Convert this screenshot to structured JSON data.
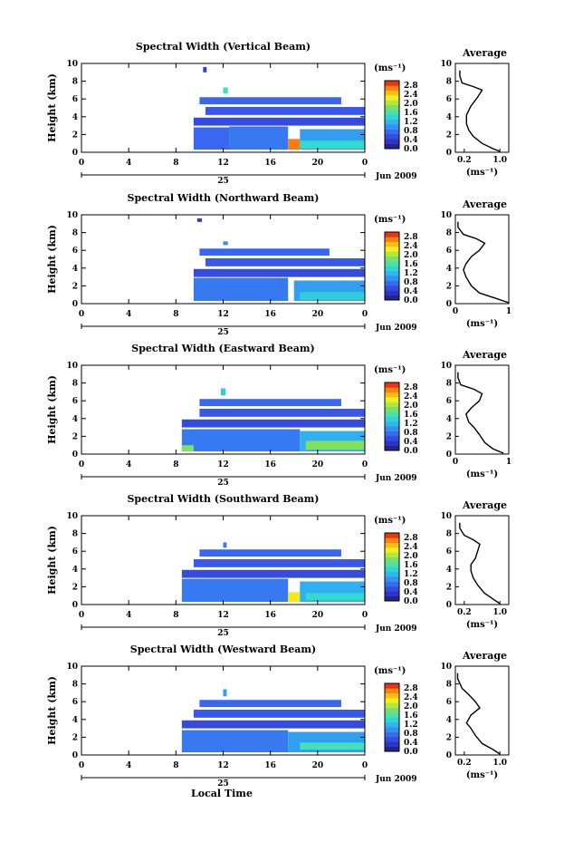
{
  "chart_data": [
    {
      "type": "heatmap",
      "title": "Spectral Width (Vertical Beam)",
      "ylabel": "Height (km)",
      "xlim": [
        0,
        24
      ],
      "ylim": [
        0,
        10
      ],
      "x_ticks": [
        "0",
        "4",
        "8",
        "12",
        "16",
        "20",
        "0"
      ],
      "y_ticks": [
        "0",
        "2",
        "4",
        "6",
        "8",
        "10"
      ],
      "date_day": "25",
      "date_month": "Jun 2009",
      "colorbar": {
        "unit": "(ms⁻¹)",
        "ticks": [
          "0.0",
          "0.4",
          "0.8",
          "1.2",
          "1.6",
          "2.0",
          "2.4",
          "2.8"
        ]
      },
      "cells": [
        {
          "t0": 9.5,
          "t1": 12.5,
          "h0": 0.3,
          "h1": 2.8,
          "v": 0.7
        },
        {
          "t0": 12.5,
          "t1": 17.5,
          "h0": 0.3,
          "h1": 2.9,
          "v": 0.8
        },
        {
          "t0": 17.5,
          "t1": 18.5,
          "h0": 0.3,
          "h1": 1.5,
          "v": 2.6
        },
        {
          "t0": 18.5,
          "t1": 24,
          "h0": 0.3,
          "h1": 2.6,
          "v": 1.0
        },
        {
          "t0": 18.5,
          "t1": 24,
          "h0": 0.4,
          "h1": 1.3,
          "v": 1.4
        },
        {
          "t0": 9.5,
          "t1": 24,
          "h0": 3.0,
          "h1": 3.9,
          "v": 0.5
        },
        {
          "t0": 10.5,
          "t1": 24,
          "h0": 4.2,
          "h1": 5.1,
          "v": 0.6
        },
        {
          "t0": 10.0,
          "t1": 22.0,
          "h0": 5.4,
          "h1": 6.2,
          "v": 0.7
        },
        {
          "t0": 12.0,
          "t1": 12.4,
          "h0": 6.6,
          "h1": 7.3,
          "v": 1.5
        },
        {
          "t0": 10.3,
          "t1": 10.6,
          "h0": 9.0,
          "h1": 9.6,
          "v": 0.4
        }
      ]
    },
    {
      "type": "line",
      "title": "Average",
      "xlabel": "(ms⁻¹)",
      "xlim": [
        0,
        1.2
      ],
      "ylim": [
        0,
        10
      ],
      "x_ticks": [
        "0.2",
        "1.0"
      ],
      "y_ticks": [
        "0",
        "2",
        "4",
        "6",
        "8",
        "10"
      ],
      "values": [
        [
          1.0,
          0.1
        ],
        [
          0.85,
          0.4
        ],
        [
          0.6,
          1.0
        ],
        [
          0.4,
          1.8
        ],
        [
          0.3,
          2.5
        ],
        [
          0.25,
          3.2
        ],
        [
          0.25,
          4.2
        ],
        [
          0.35,
          5.2
        ],
        [
          0.5,
          6.2
        ],
        [
          0.6,
          7.0
        ],
        [
          0.4,
          7.4
        ],
        [
          0.15,
          7.8
        ],
        [
          0.1,
          8.6
        ],
        [
          0.1,
          9.2
        ]
      ]
    },
    {
      "type": "heatmap",
      "title": "Spectral Width (Northward Beam)",
      "ylabel": "Height (km)",
      "xlim": [
        0,
        24
      ],
      "ylim": [
        0,
        10
      ],
      "x_ticks": [
        "0",
        "4",
        "8",
        "12",
        "16",
        "20",
        "0"
      ],
      "y_ticks": [
        "0",
        "2",
        "4",
        "6",
        "8",
        "10"
      ],
      "date_day": "25",
      "date_month": "Jun 2009",
      "colorbar": {
        "unit": "(ms⁻¹)",
        "ticks": [
          "0.0",
          "0.4",
          "0.8",
          "1.2",
          "1.6",
          "2.0",
          "2.4",
          "2.8"
        ]
      },
      "cells": [
        {
          "t0": 9.5,
          "t1": 17.5,
          "h0": 0.3,
          "h1": 2.9,
          "v": 0.8
        },
        {
          "t0": 18.0,
          "t1": 24,
          "h0": 0.3,
          "h1": 2.6,
          "v": 1.0
        },
        {
          "t0": 18.5,
          "t1": 24,
          "h0": 0.4,
          "h1": 1.3,
          "v": 1.3
        },
        {
          "t0": 9.5,
          "t1": 24,
          "h0": 3.0,
          "h1": 3.9,
          "v": 0.5
        },
        {
          "t0": 10.5,
          "t1": 24,
          "h0": 4.2,
          "h1": 5.1,
          "v": 0.6
        },
        {
          "t0": 10.0,
          "t1": 21.0,
          "h0": 5.4,
          "h1": 6.2,
          "v": 0.7
        },
        {
          "t0": 12.0,
          "t1": 12.4,
          "h0": 6.6,
          "h1": 7.0,
          "v": 0.9
        },
        {
          "t0": 9.8,
          "t1": 10.2,
          "h0": 9.2,
          "h1": 9.6,
          "v": 0.4
        }
      ]
    },
    {
      "type": "line",
      "title": "Average",
      "xlabel": "(ms⁻¹)",
      "xlim": [
        0,
        1.0
      ],
      "ylim": [
        0,
        10
      ],
      "x_ticks": [
        "0",
        "1"
      ],
      "y_ticks": [
        "0",
        "2",
        "4",
        "6",
        "8",
        "10"
      ],
      "values": [
        [
          1.0,
          0.1
        ],
        [
          0.75,
          0.6
        ],
        [
          0.45,
          1.2
        ],
        [
          0.3,
          2.0
        ],
        [
          0.2,
          3.0
        ],
        [
          0.15,
          3.8
        ],
        [
          0.2,
          4.5
        ],
        [
          0.3,
          5.3
        ],
        [
          0.45,
          6.0
        ],
        [
          0.55,
          6.8
        ],
        [
          0.4,
          7.3
        ],
        [
          0.15,
          7.8
        ],
        [
          0.05,
          8.6
        ],
        [
          0.05,
          9.2
        ]
      ]
    },
    {
      "type": "heatmap",
      "title": "Spectral Width (Eastward Beam)",
      "ylabel": "Height (km)",
      "xlim": [
        0,
        24
      ],
      "ylim": [
        0,
        10
      ],
      "x_ticks": [
        "0",
        "4",
        "8",
        "12",
        "16",
        "20",
        "0"
      ],
      "y_ticks": [
        "0",
        "2",
        "4",
        "6",
        "8",
        "10"
      ],
      "date_day": "25",
      "date_month": "Jun 2009",
      "colorbar": {
        "unit": "(ms⁻¹)",
        "ticks": [
          "0.0",
          "0.4",
          "0.8",
          "1.2",
          "1.6",
          "2.0",
          "2.4",
          "2.8"
        ]
      },
      "cells": [
        {
          "t0": 8.5,
          "t1": 18.5,
          "h0": 0.3,
          "h1": 2.8,
          "v": 0.8
        },
        {
          "t0": 8.5,
          "t1": 9.5,
          "h0": 0.3,
          "h1": 1.0,
          "v": 1.8
        },
        {
          "t0": 18.5,
          "t1": 24,
          "h0": 0.3,
          "h1": 2.6,
          "v": 1.1
        },
        {
          "t0": 19.0,
          "t1": 24,
          "h0": 0.5,
          "h1": 1.5,
          "v": 1.8
        },
        {
          "t0": 8.5,
          "t1": 24,
          "h0": 3.0,
          "h1": 3.9,
          "v": 0.5
        },
        {
          "t0": 10.0,
          "t1": 24,
          "h0": 4.2,
          "h1": 5.1,
          "v": 0.6
        },
        {
          "t0": 10.0,
          "t1": 22.0,
          "h0": 5.4,
          "h1": 6.2,
          "v": 0.7
        },
        {
          "t0": 11.8,
          "t1": 12.2,
          "h0": 6.6,
          "h1": 7.4,
          "v": 1.3
        }
      ]
    },
    {
      "type": "line",
      "title": "Average",
      "xlabel": "(ms⁻¹)",
      "xlim": [
        0,
        1.0
      ],
      "ylim": [
        0,
        10
      ],
      "x_ticks": [
        "0",
        "1"
      ],
      "y_ticks": [
        "0",
        "2",
        "4",
        "6",
        "8",
        "10"
      ],
      "values": [
        [
          0.9,
          0.1
        ],
        [
          0.7,
          0.6
        ],
        [
          0.55,
          1.3
        ],
        [
          0.45,
          2.2
        ],
        [
          0.35,
          3.0
        ],
        [
          0.25,
          3.6
        ],
        [
          0.2,
          4.5
        ],
        [
          0.3,
          5.2
        ],
        [
          0.45,
          6.0
        ],
        [
          0.5,
          6.8
        ],
        [
          0.35,
          7.3
        ],
        [
          0.1,
          7.8
        ],
        [
          0.05,
          8.6
        ],
        [
          0.05,
          9.2
        ]
      ]
    },
    {
      "type": "heatmap",
      "title": "Spectral Width (Southward Beam)",
      "ylabel": "Height (km)",
      "xlim": [
        0,
        24
      ],
      "ylim": [
        0,
        10
      ],
      "x_ticks": [
        "0",
        "4",
        "8",
        "12",
        "16",
        "20",
        "0"
      ],
      "y_ticks": [
        "0",
        "2",
        "4",
        "6",
        "8",
        "10"
      ],
      "date_day": "25",
      "date_month": "Jun 2009",
      "colorbar": {
        "unit": "(ms⁻¹)",
        "ticks": [
          "0.0",
          "0.4",
          "0.8",
          "1.2",
          "1.6",
          "2.0",
          "2.4",
          "2.8"
        ]
      },
      "cells": [
        {
          "t0": 8.5,
          "t1": 17.5,
          "h0": 0.3,
          "h1": 2.9,
          "v": 0.8
        },
        {
          "t0": 17.5,
          "t1": 18.5,
          "h0": 0.3,
          "h1": 1.4,
          "v": 2.2
        },
        {
          "t0": 18.5,
          "t1": 24,
          "h0": 0.3,
          "h1": 2.6,
          "v": 1.1
        },
        {
          "t0": 19.0,
          "t1": 24,
          "h0": 0.5,
          "h1": 1.3,
          "v": 1.4
        },
        {
          "t0": 8.5,
          "t1": 24,
          "h0": 3.0,
          "h1": 3.9,
          "v": 0.5
        },
        {
          "t0": 9.5,
          "t1": 24,
          "h0": 4.2,
          "h1": 5.1,
          "v": 0.6
        },
        {
          "t0": 10.0,
          "t1": 22.0,
          "h0": 5.4,
          "h1": 6.2,
          "v": 0.7
        },
        {
          "t0": 12.0,
          "t1": 12.3,
          "h0": 6.4,
          "h1": 7.0,
          "v": 0.8
        }
      ]
    },
    {
      "type": "line",
      "title": "Average",
      "xlabel": "(ms⁻¹)",
      "xlim": [
        0,
        1.2
      ],
      "ylim": [
        0,
        10
      ],
      "x_ticks": [
        "0.2",
        "1.0"
      ],
      "y_ticks": [
        "0",
        "2",
        "4",
        "6",
        "8",
        "10"
      ],
      "values": [
        [
          1.0,
          0.1
        ],
        [
          0.85,
          0.6
        ],
        [
          0.65,
          1.3
        ],
        [
          0.5,
          2.2
        ],
        [
          0.4,
          3.0
        ],
        [
          0.35,
          3.8
        ],
        [
          0.35,
          4.5
        ],
        [
          0.45,
          5.2
        ],
        [
          0.5,
          6.0
        ],
        [
          0.55,
          6.8
        ],
        [
          0.4,
          7.3
        ],
        [
          0.2,
          7.8
        ],
        [
          0.1,
          8.6
        ],
        [
          0.1,
          9.2
        ]
      ]
    },
    {
      "type": "heatmap",
      "title": "Spectral Width (Westward Beam)",
      "ylabel": "Height (km)",
      "xlim": [
        0,
        24
      ],
      "ylim": [
        0,
        10
      ],
      "x_ticks": [
        "0",
        "4",
        "8",
        "12",
        "16",
        "20",
        "0"
      ],
      "y_ticks": [
        "0",
        "2",
        "4",
        "6",
        "8",
        "10"
      ],
      "date_day": "25",
      "date_month": "Jun 2009",
      "colorbar": {
        "unit": "(ms⁻¹)",
        "ticks": [
          "0.0",
          "0.4",
          "0.8",
          "1.2",
          "1.6",
          "2.0",
          "2.4",
          "2.8"
        ]
      },
      "cells": [
        {
          "t0": 8.5,
          "t1": 17.5,
          "h0": 0.3,
          "h1": 2.8,
          "v": 0.8
        },
        {
          "t0": 17.5,
          "t1": 24,
          "h0": 0.3,
          "h1": 2.6,
          "v": 1.0
        },
        {
          "t0": 18.5,
          "t1": 24,
          "h0": 0.6,
          "h1": 1.4,
          "v": 1.5
        },
        {
          "t0": 8.5,
          "t1": 24,
          "h0": 3.0,
          "h1": 3.9,
          "v": 0.5
        },
        {
          "t0": 9.5,
          "t1": 24,
          "h0": 4.2,
          "h1": 5.1,
          "v": 0.6
        },
        {
          "t0": 10.0,
          "t1": 22.0,
          "h0": 5.4,
          "h1": 6.2,
          "v": 0.7
        },
        {
          "t0": 12.0,
          "t1": 12.3,
          "h0": 6.6,
          "h1": 7.4,
          "v": 1.0
        }
      ]
    },
    {
      "type": "line",
      "title": "Average",
      "xlabel": "(ms⁻¹)",
      "xlim": [
        0,
        1.2
      ],
      "ylim": [
        0,
        10
      ],
      "x_ticks": [
        "0.2",
        "1.0"
      ],
      "y_ticks": [
        "0",
        "2",
        "4",
        "6",
        "8",
        "10"
      ],
      "values": [
        [
          1.0,
          0.1
        ],
        [
          0.85,
          0.6
        ],
        [
          0.6,
          1.3
        ],
        [
          0.45,
          2.2
        ],
        [
          0.35,
          3.0
        ],
        [
          0.25,
          3.6
        ],
        [
          0.35,
          4.5
        ],
        [
          0.55,
          5.3
        ],
        [
          0.45,
          6.0
        ],
        [
          0.3,
          6.8
        ],
        [
          0.15,
          7.5
        ],
        [
          0.05,
          8.6
        ],
        [
          0.05,
          9.2
        ]
      ]
    }
  ],
  "footer": {
    "xlabel": "Local Time"
  }
}
